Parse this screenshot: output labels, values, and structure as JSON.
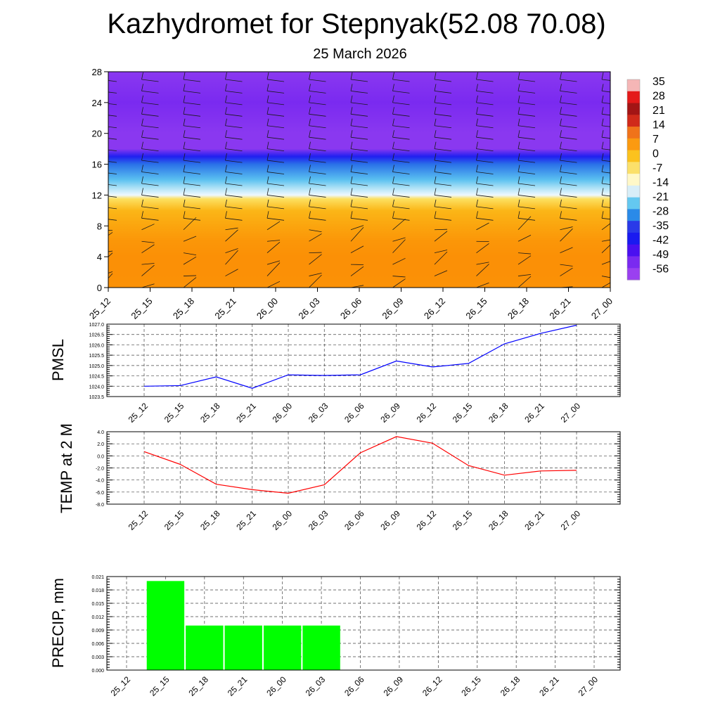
{
  "header": {
    "title": "Kazhydromet for Stepnyak(52.08 70.08)",
    "subtitle": "25 March 2026"
  },
  "time_labels": [
    "25_12",
    "25_15",
    "25_18",
    "25_21",
    "26_00",
    "26_03",
    "26_06",
    "26_09",
    "26_12",
    "26_15",
    "26_18",
    "26_21",
    "27_00"
  ],
  "chart_data": [
    {
      "type": "heatmap",
      "title": "",
      "xlabel": "",
      "ylabel": "",
      "x": [
        "25_12",
        "25_15",
        "25_18",
        "25_21",
        "26_00",
        "26_03",
        "26_06",
        "26_09",
        "26_12",
        "26_15",
        "26_18",
        "26_21",
        "27_00"
      ],
      "y_ticks": [
        0,
        4,
        8,
        12,
        16,
        20,
        24,
        28
      ],
      "ylim": [
        0,
        28
      ],
      "colorbar": {
        "labels": [
          "35",
          "28",
          "21",
          "14",
          "7",
          "0",
          "-7",
          "-14",
          "-21",
          "-28",
          "-35",
          "-42",
          "-49",
          "-56"
        ],
        "colors": [
          "#f5b6b6",
          "#e41a1a",
          "#a31515",
          "#d02a1a",
          "#f0731a",
          "#fb9a10",
          "#fbc21e",
          "#fbe06a",
          "#fff8c8",
          "#d8eef8",
          "#64c8f0",
          "#2a8ae8",
          "#2a3ae8",
          "#1a1af0",
          "#4a10f0",
          "#7a2af0",
          "#9a40f0"
        ]
      },
      "temperature_profile": [
        {
          "y": 0,
          "t": 9
        },
        {
          "y": 2,
          "t": 9.5
        },
        {
          "y": 4,
          "t": 9.5
        },
        {
          "y": 6,
          "t": 8
        },
        {
          "y": 8,
          "t": 5
        },
        {
          "y": 10,
          "t": 2
        },
        {
          "y": 11.5,
          "t": -4
        },
        {
          "y": 12,
          "t": -13
        },
        {
          "y": 13,
          "t": -20
        },
        {
          "y": 14,
          "t": -28
        },
        {
          "y": 16,
          "t": -38
        },
        {
          "y": 17,
          "t": -48
        },
        {
          "y": 18,
          "t": -56
        },
        {
          "y": 20,
          "t": -56
        },
        {
          "y": 24,
          "t": -58
        },
        {
          "y": 28,
          "t": -56
        }
      ],
      "grid": false
    },
    {
      "type": "line",
      "ylabel": "PMSL",
      "x": [
        "25_12",
        "25_15",
        "25_18",
        "25_21",
        "26_00",
        "26_03",
        "26_06",
        "26_09",
        "26_12",
        "26_15",
        "26_18",
        "26_21",
        "27_00"
      ],
      "series": [
        {
          "values": [
            1024.0,
            1024.03,
            1024.45,
            1023.9,
            1024.55,
            1024.52,
            1024.55,
            1025.22,
            1024.93,
            1025.1,
            1026.05,
            1026.55,
            1026.95
          ]
        }
      ],
      "y_ticks": [
        "1023.5",
        "1024.0",
        "1024.5",
        "1025.0",
        "1025.5",
        "1026.0",
        "1026.5",
        "1027.0"
      ],
      "ylim": [
        1023.5,
        1027.0
      ],
      "color": "#0000ff",
      "grid": true
    },
    {
      "type": "line",
      "ylabel": "TEMP at 2 M",
      "x": [
        "25_12",
        "25_15",
        "25_18",
        "25_21",
        "26_00",
        "26_03",
        "26_06",
        "26_09",
        "26_12",
        "26_15",
        "26_18",
        "26_21",
        "27_00"
      ],
      "series": [
        {
          "values": [
            0.7,
            -1.4,
            -4.7,
            -5.6,
            -6.2,
            -4.8,
            0.5,
            3.2,
            2.1,
            -1.6,
            -3.2,
            -2.5,
            -2.4
          ]
        }
      ],
      "y_ticks": [
        "-8.0",
        "-6.0",
        "-4.0",
        "-2.0",
        "0.0",
        "2.0",
        "4.0"
      ],
      "ylim": [
        -8.0,
        4.0
      ],
      "color": "#ff0000",
      "grid": true
    },
    {
      "type": "bar",
      "ylabel": "PRECIP, mm",
      "categories": [
        "25_12",
        "25_15",
        "25_18",
        "25_21",
        "26_00",
        "26_03",
        "26_06",
        "26_09",
        "26_12",
        "26_15",
        "26_18",
        "26_21",
        "27_00"
      ],
      "values": [
        0,
        0.02,
        0.01,
        0.01,
        0.01,
        0.01,
        0,
        0,
        0,
        0,
        0,
        0,
        0
      ],
      "y_ticks": [
        "0.000",
        "0.003",
        "0.006",
        "0.009",
        "0.012",
        "0.015",
        "0.018",
        "0.021"
      ],
      "ylim": [
        0,
        0.021
      ],
      "color": "#00ff00",
      "grid": true
    }
  ]
}
